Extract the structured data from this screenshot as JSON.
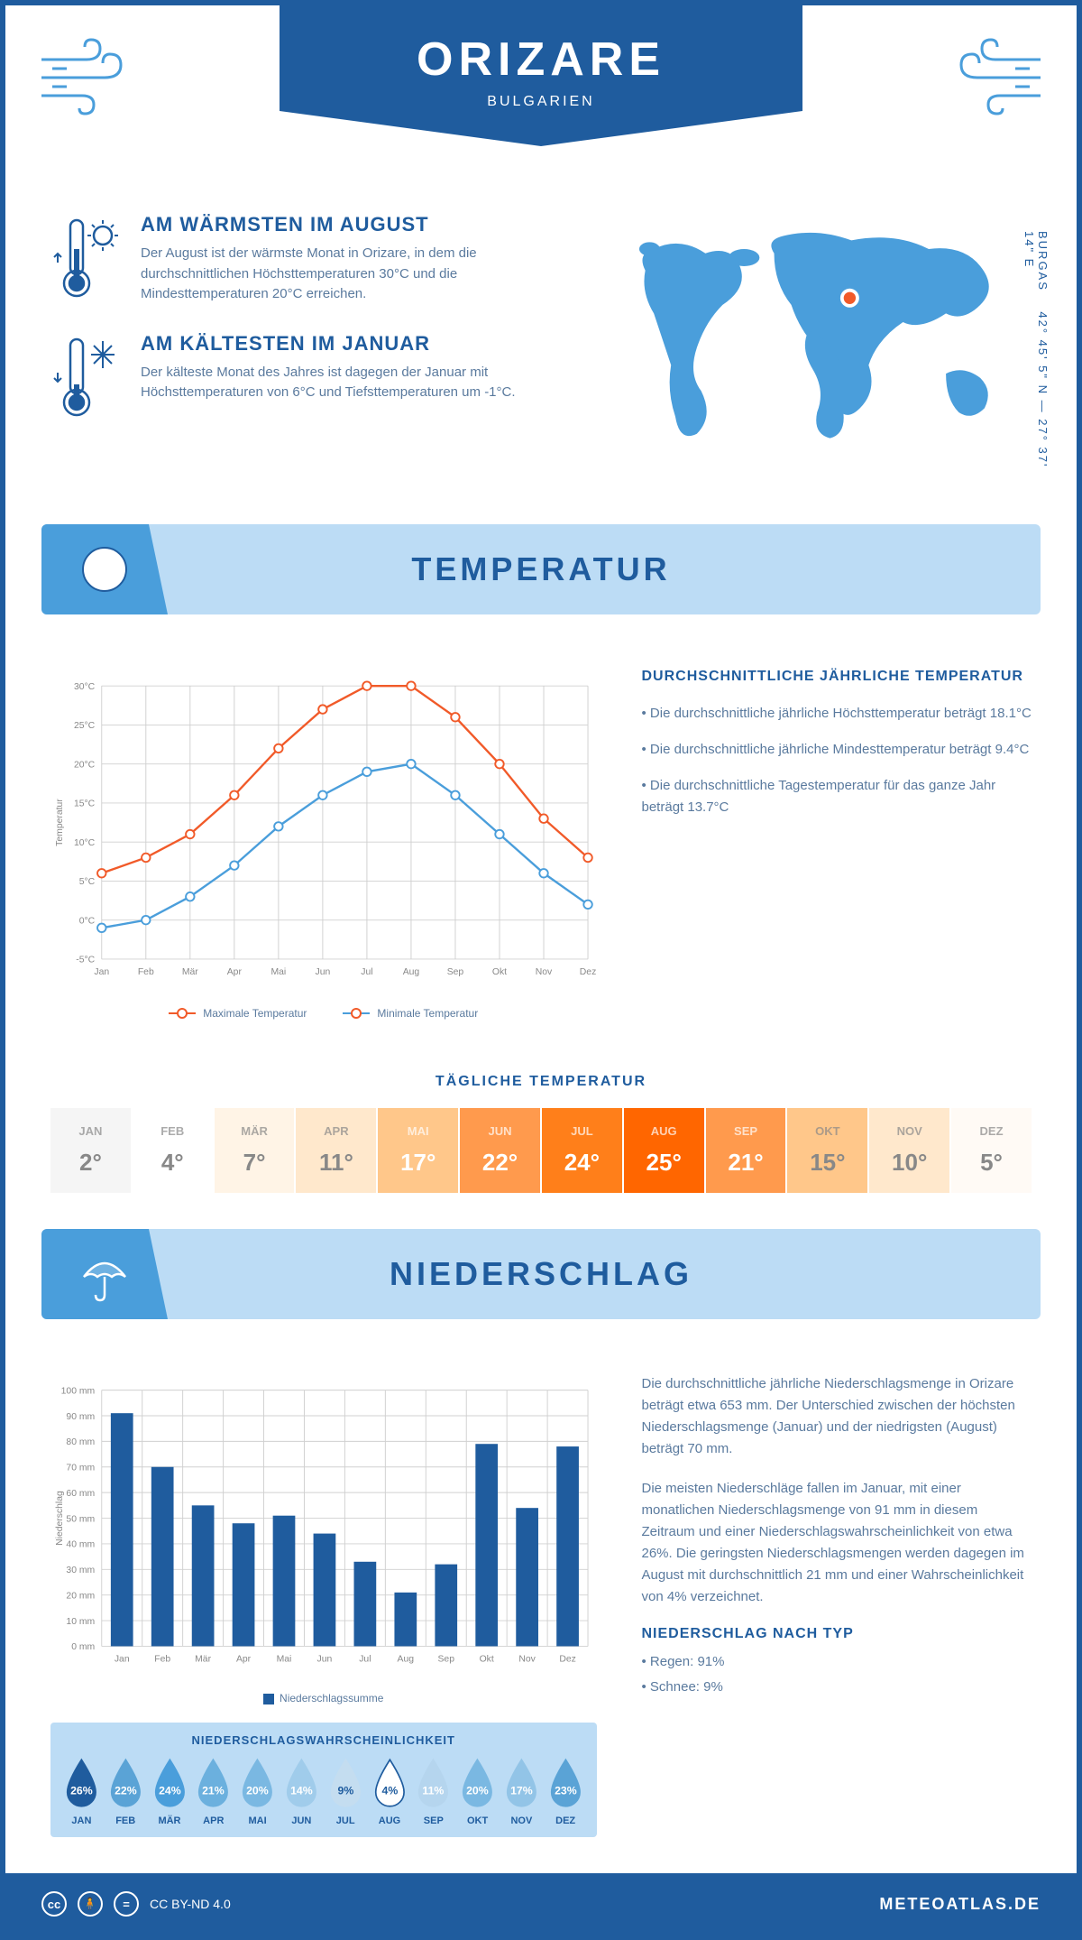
{
  "header": {
    "city": "ORIZARE",
    "country": "BULGARIEN"
  },
  "coords": {
    "text": "42° 45' 5\" N — 27° 37' 14\" E",
    "region": "BURGAS"
  },
  "warmest": {
    "title": "AM WÄRMSTEN IM AUGUST",
    "text": "Der August ist der wärmste Monat in Orizare, in dem die durchschnittlichen Höchsttemperaturen 30°C und die Mindesttemperaturen 20°C erreichen."
  },
  "coldest": {
    "title": "AM KÄLTESTEN IM JANUAR",
    "text": "Der kälteste Monat des Jahres ist dagegen der Januar mit Höchsttemperaturen von 6°C und Tiefsttemperaturen um -1°C."
  },
  "section1_title": "TEMPERATUR",
  "section2_title": "NIEDERSCHLAG",
  "temp_chart": {
    "type": "line",
    "months": [
      "Jan",
      "Feb",
      "Mär",
      "Apr",
      "Mai",
      "Jun",
      "Jul",
      "Aug",
      "Sep",
      "Okt",
      "Nov",
      "Dez"
    ],
    "series": [
      {
        "name": "Maximale Temperatur",
        "color": "#f15a29",
        "values": [
          6,
          8,
          11,
          16,
          22,
          27,
          30,
          30,
          26,
          20,
          13,
          8
        ]
      },
      {
        "name": "Minimale Temperatur",
        "color": "#4a9edb",
        "values": [
          -1,
          0,
          3,
          7,
          12,
          16,
          19,
          20,
          16,
          11,
          6,
          2
        ]
      }
    ],
    "ylim": [
      -5,
      30
    ],
    "ytick_step": 5,
    "ylabel": "Temperatur",
    "grid_color": "#d0d0d0",
    "background": "#ffffff",
    "line_width": 2.5,
    "marker_size": 5
  },
  "temp_info": {
    "title": "DURCHSCHNITTLICHE JÄHRLICHE TEMPERATUR",
    "bullets": [
      "• Die durchschnittliche jährliche Höchsttemperatur beträgt 18.1°C",
      "• Die durchschnittliche jährliche Mindesttemperatur beträgt 9.4°C",
      "• Die durchschnittliche Tagestemperatur für das ganze Jahr beträgt 13.7°C"
    ]
  },
  "daily_temp": {
    "title": "TÄGLICHE TEMPERATUR",
    "months": [
      "JAN",
      "FEB",
      "MÄR",
      "APR",
      "MAI",
      "JUN",
      "JUL",
      "AUG",
      "SEP",
      "OKT",
      "NOV",
      "DEZ"
    ],
    "values": [
      "2°",
      "4°",
      "7°",
      "11°",
      "17°",
      "22°",
      "24°",
      "25°",
      "21°",
      "15°",
      "10°",
      "5°"
    ],
    "bg_colors": [
      "#f5f5f5",
      "#ffffff",
      "#fff4e6",
      "#ffe8cc",
      "#ffc78a",
      "#ff9a4d",
      "#ff7f1a",
      "#ff6600",
      "#ff9a4d",
      "#ffc78a",
      "#ffe8cc",
      "#fffaf5"
    ],
    "text_colors": [
      "#888",
      "#888",
      "#888",
      "#888",
      "#fff",
      "#fff",
      "#fff",
      "#fff",
      "#fff",
      "#888",
      "#888",
      "#888"
    ]
  },
  "precip_chart": {
    "type": "bar",
    "months": [
      "Jan",
      "Feb",
      "Mär",
      "Apr",
      "Mai",
      "Jun",
      "Jul",
      "Aug",
      "Sep",
      "Okt",
      "Nov",
      "Dez"
    ],
    "values": [
      91,
      70,
      55,
      48,
      51,
      44,
      33,
      21,
      32,
      79,
      54,
      78
    ],
    "bar_color": "#1f5c9e",
    "ylim": [
      0,
      100
    ],
    "ytick_step": 10,
    "ylabel": "Niederschlag",
    "grid_color": "#d0d0d0",
    "legend": "Niederschlagssumme",
    "bar_width": 0.55
  },
  "precip_text": {
    "p1": "Die durchschnittliche jährliche Niederschlagsmenge in Orizare beträgt etwa 653 mm. Der Unterschied zwischen der höchsten Niederschlagsmenge (Januar) und der niedrigsten (August) beträgt 70 mm.",
    "p2": "Die meisten Niederschläge fallen im Januar, mit einer monatlichen Niederschlagsmenge von 91 mm in diesem Zeitraum und einer Niederschlagswahrscheinlichkeit von etwa 26%. Die geringsten Niederschlagsmengen werden dagegen im August mit durchschnittlich 21 mm und einer Wahrscheinlichkeit von 4% verzeichnet.",
    "type_title": "NIEDERSCHLAG NACH TYP",
    "types": [
      "• Regen: 91%",
      "• Schnee: 9%"
    ]
  },
  "probability": {
    "title": "NIEDERSCHLAGSWAHRSCHEINLICHKEIT",
    "months": [
      "JAN",
      "FEB",
      "MÄR",
      "APR",
      "MAI",
      "JUN",
      "JUL",
      "AUG",
      "SEP",
      "OKT",
      "NOV",
      "DEZ"
    ],
    "values": [
      "26%",
      "22%",
      "24%",
      "21%",
      "20%",
      "14%",
      "9%",
      "4%",
      "11%",
      "20%",
      "17%",
      "23%"
    ],
    "fills": [
      "#1f5c9e",
      "#5aa3d6",
      "#4a9edb",
      "#6bb0de",
      "#7ab8e2",
      "#a0cceb",
      "#c4ddf0",
      "#ffffff",
      "#b5d5ee",
      "#7ab8e2",
      "#92c4e7",
      "#5aa3d6"
    ],
    "text_colors": [
      "#fff",
      "#fff",
      "#fff",
      "#fff",
      "#fff",
      "#fff",
      "#1f5c9e",
      "#1f5c9e",
      "#fff",
      "#fff",
      "#fff",
      "#fff"
    ]
  },
  "footer": {
    "license": "CC BY-ND 4.0",
    "site": "METEOATLAS.DE"
  },
  "colors": {
    "primary": "#1f5c9e",
    "light_blue": "#bcdcf5",
    "mid_blue": "#4a9edb"
  }
}
